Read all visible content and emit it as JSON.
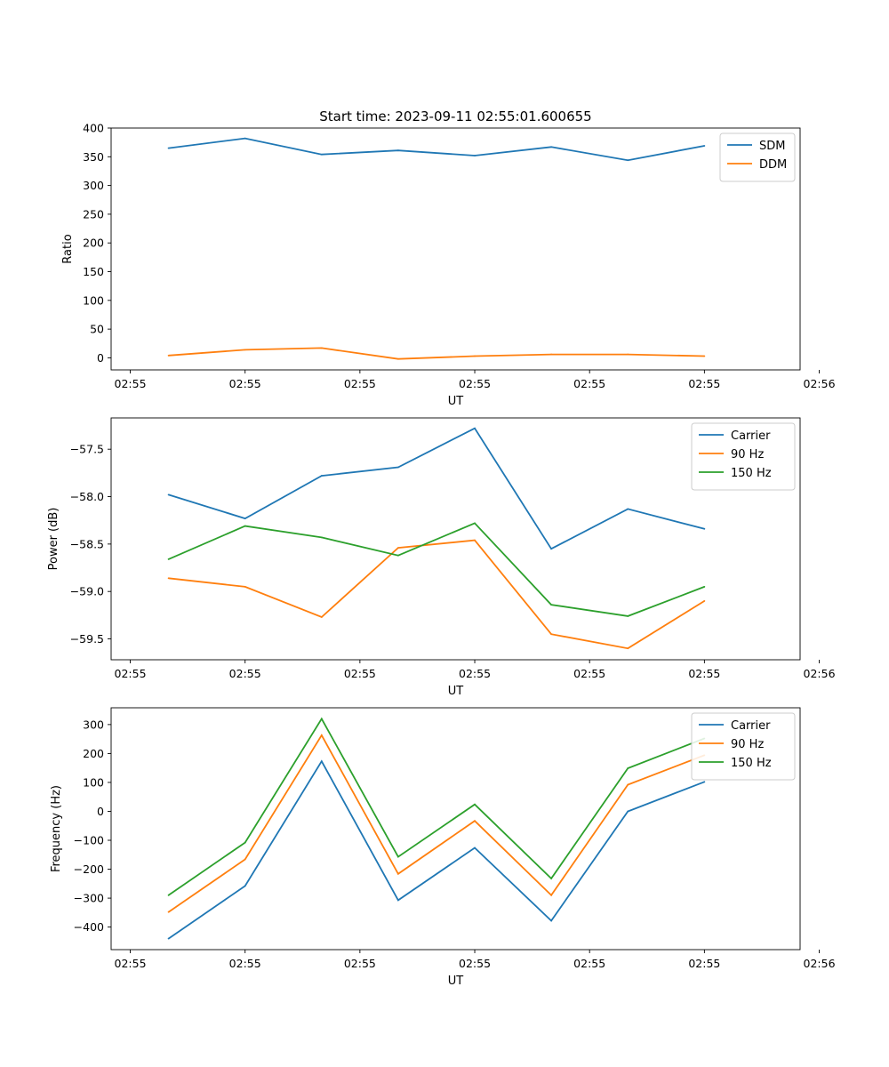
{
  "figure_title": "Start time: 2023-09-11 02:55:01.600655",
  "colors": {
    "blue": "#1f77b4",
    "orange": "#ff7f0e",
    "green": "#2ca02c",
    "legend_border": "#cccccc"
  },
  "chart_data": [
    {
      "type": "line",
      "title": "Start time: 2023-09-11 02:55:01.600655",
      "xlabel": "UT",
      "ylabel": "Ratio",
      "x": [
        1,
        2,
        3,
        4,
        5,
        6,
        7,
        8
      ],
      "xlim": [
        0.25,
        9.25
      ],
      "xticks": [
        0.5,
        2,
        3.5,
        5,
        6.5,
        8,
        9.5
      ],
      "xtick_labels": [
        "02:55",
        "02:55",
        "02:55",
        "02:55",
        "02:55",
        "02:55",
        "02:56"
      ],
      "ylim": [
        -21,
        400
      ],
      "yticks": [
        0,
        50,
        100,
        150,
        200,
        250,
        300,
        350,
        400
      ],
      "ytick_labels": [
        "0",
        "50",
        "100",
        "150",
        "200",
        "250",
        "300",
        "350",
        "400"
      ],
      "legend": "top-right",
      "series": [
        {
          "name": "SDM",
          "color": "blue",
          "values": [
            365,
            382,
            354,
            361,
            352,
            367,
            344,
            369
          ]
        },
        {
          "name": "DDM",
          "color": "orange",
          "values": [
            4,
            14,
            17,
            -2,
            3,
            6,
            6,
            3
          ]
        }
      ]
    },
    {
      "type": "line",
      "title": "",
      "xlabel": "UT",
      "ylabel": "Power (dB)",
      "x": [
        1,
        2,
        3,
        4,
        5,
        6,
        7,
        8
      ],
      "xlim": [
        0.25,
        9.25
      ],
      "xticks": [
        0.5,
        2,
        3.5,
        5,
        6.5,
        8,
        9.5
      ],
      "xtick_labels": [
        "02:55",
        "02:55",
        "02:55",
        "02:55",
        "02:55",
        "02:55",
        "02:56"
      ],
      "ylim": [
        -59.72,
        -57.17
      ],
      "yticks": [
        -59.5,
        -59.0,
        -58.5,
        -58.0,
        -57.5
      ],
      "ytick_labels": [
        "−59.5",
        "−59.0",
        "−58.5",
        "−58.0",
        "−57.5"
      ],
      "legend": "top-right",
      "series": [
        {
          "name": "Carrier",
          "color": "blue",
          "values": [
            -57.98,
            -58.23,
            -57.78,
            -57.69,
            -57.28,
            -58.55,
            -58.13,
            -58.34
          ]
        },
        {
          "name": "90 Hz",
          "color": "orange",
          "values": [
            -58.86,
            -58.95,
            -59.27,
            -58.54,
            -58.46,
            -59.45,
            -59.6,
            -59.1
          ]
        },
        {
          "name": "150 Hz",
          "color": "green",
          "values": [
            -58.66,
            -58.31,
            -58.43,
            -58.62,
            -58.28,
            -59.14,
            -59.26,
            -58.95
          ]
        }
      ]
    },
    {
      "type": "line",
      "title": "",
      "xlabel": "UT",
      "ylabel": "Frequency (Hz)",
      "x": [
        1,
        2,
        3,
        4,
        5,
        6,
        7,
        8
      ],
      "xlim": [
        0.25,
        9.25
      ],
      "xticks": [
        0.5,
        2,
        3.5,
        5,
        6.5,
        8,
        9.5
      ],
      "xtick_labels": [
        "02:55",
        "02:55",
        "02:55",
        "02:55",
        "02:55",
        "02:55",
        "02:56"
      ],
      "ylim": [
        -478,
        358
      ],
      "yticks": [
        -400,
        -300,
        -200,
        -100,
        0,
        100,
        200,
        300
      ],
      "ytick_labels": [
        "−400",
        "−300",
        "−200",
        "−100",
        "0",
        "100",
        "200",
        "300"
      ],
      "legend": "top-right",
      "series": [
        {
          "name": "Carrier",
          "color": "blue",
          "values": [
            -440,
            -258,
            173,
            -307,
            -126,
            -378,
            0,
            102
          ]
        },
        {
          "name": "90 Hz",
          "color": "orange",
          "values": [
            -348,
            -166,
            263,
            -216,
            -33,
            -290,
            92,
            194
          ]
        },
        {
          "name": "150 Hz",
          "color": "green",
          "values": [
            -290,
            -108,
            320,
            -157,
            24,
            -232,
            149,
            252
          ]
        }
      ]
    }
  ]
}
